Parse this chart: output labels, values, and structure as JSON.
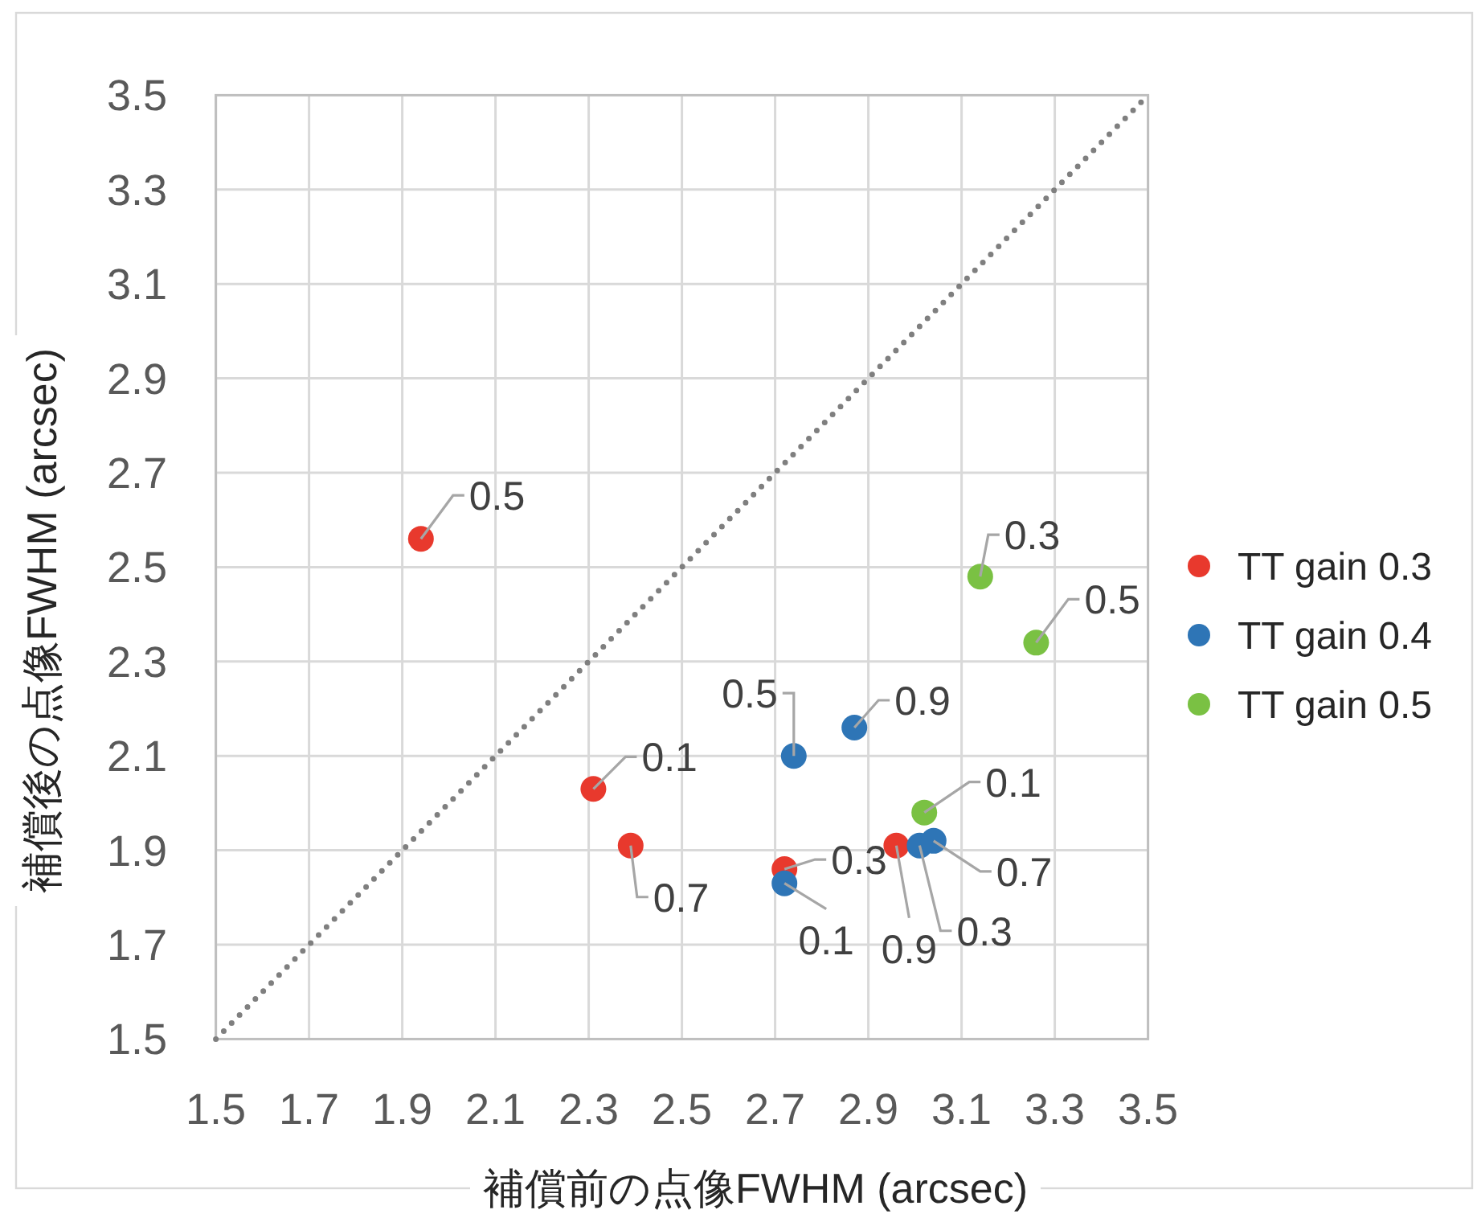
{
  "chart_data": {
    "type": "scatter",
    "xlabel": "補償前の点像FWHM (arcsec)",
    "ylabel": "補償後の点像FWHM (arcsec)",
    "xlim": [
      1.5,
      3.5
    ],
    "ylim": [
      1.5,
      3.5
    ],
    "xticks": [
      1.5,
      1.7,
      1.9,
      2.1,
      2.3,
      2.5,
      2.7,
      2.9,
      3.1,
      3.3,
      3.5
    ],
    "yticks": [
      1.5,
      1.7,
      1.9,
      2.1,
      2.3,
      2.5,
      2.7,
      2.9,
      3.1,
      3.3,
      3.5
    ],
    "grid": true,
    "legend": "right",
    "marker": "circle",
    "series": [
      {
        "name": "TT gain 0.3",
        "color": "#e8392d",
        "x": [
          2.31,
          2.72,
          1.94,
          2.39,
          2.96
        ],
        "values": [
          2.03,
          1.86,
          2.56,
          1.91,
          1.91
        ]
      },
      {
        "name": "TT gain 0.4",
        "color": "#2e75b6",
        "x": [
          2.72,
          3.01,
          2.74,
          3.04,
          2.87
        ],
        "values": [
          1.83,
          1.91,
          2.1,
          1.92,
          2.16
        ]
      },
      {
        "name": "TT gain 0.5",
        "color": "#7ac143",
        "x": [
          3.02,
          3.14,
          3.26
        ],
        "values": [
          1.98,
          2.48,
          2.34
        ]
      },
      {
        "type": "line",
        "color": "#7f7f7f",
        "line_style": "dotted",
        "marker": "none",
        "x": [
          1.5,
          3.5
        ],
        "values": [
          1.5,
          3.5
        ]
      }
    ],
    "annotations": [
      {
        "text": "0.1",
        "x": 2.31,
        "y": 2.03
      },
      {
        "text": "0.3",
        "x": 2.72,
        "y": 1.86
      },
      {
        "text": "0.5",
        "x": 1.94,
        "y": 2.56
      },
      {
        "text": "0.7",
        "x": 2.39,
        "y": 1.91
      },
      {
        "text": "0.9",
        "x": 2.96,
        "y": 1.91
      },
      {
        "text": "0.1",
        "x": 2.72,
        "y": 1.83
      },
      {
        "text": "0.3",
        "x": 3.01,
        "y": 1.91
      },
      {
        "text": "0.5",
        "x": 2.74,
        "y": 2.1
      },
      {
        "text": "0.7",
        "x": 3.04,
        "y": 1.92
      },
      {
        "text": "0.9",
        "x": 2.87,
        "y": 2.16
      },
      {
        "text": "0.1",
        "x": 3.02,
        "y": 1.98
      },
      {
        "text": "0.3",
        "x": 3.14,
        "y": 2.48
      },
      {
        "text": "0.5",
        "x": 3.26,
        "y": 2.34
      }
    ]
  }
}
